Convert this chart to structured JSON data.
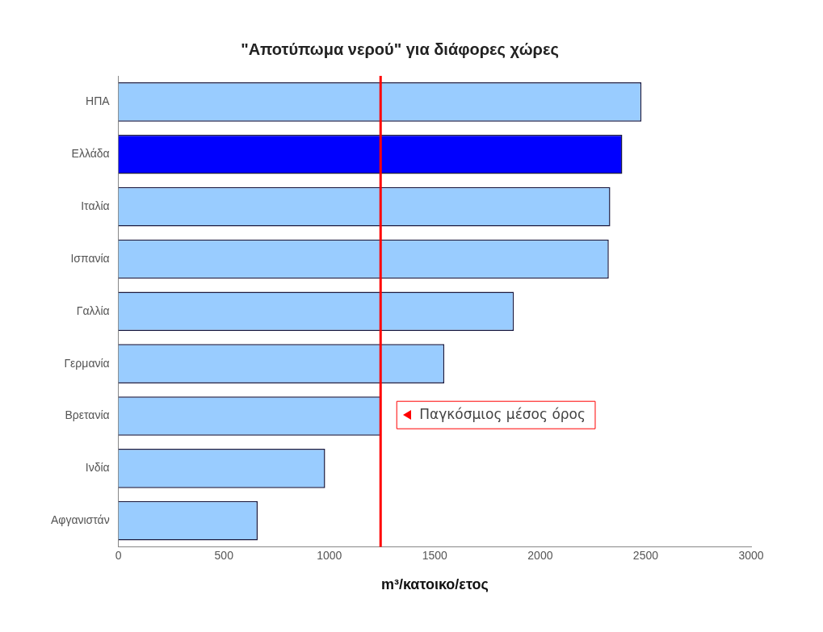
{
  "chart_data": {
    "type": "bar",
    "orientation": "horizontal",
    "title": "\"Αποτύπωμα νερού\" για διάφορες χώρες",
    "xlabel": "m³/κατοικο/ετος",
    "categories": [
      "ΗΠΑ",
      "Ελλάδα",
      "Ιταλία",
      "Ισπανία",
      "Γαλλία",
      "Γερμανία",
      "Βρετανία",
      "Ινδία",
      "Αφγανιστάν"
    ],
    "values": [
      2480,
      2389,
      2332,
      2325,
      1875,
      1545,
      1245,
      980,
      660
    ],
    "colors": [
      "#99ccff",
      "#0000ff",
      "#99ccff",
      "#99ccff",
      "#99ccff",
      "#99ccff",
      "#99ccff",
      "#99ccff",
      "#99ccff"
    ],
    "xlim": [
      0,
      3000
    ],
    "xticks": [
      0,
      500,
      1000,
      1500,
      2000,
      2500,
      3000
    ],
    "grid": false,
    "legend": false,
    "ref_lines": [
      {
        "axis": "x",
        "value": 1243,
        "label": "Παγκόσμιος μέσος όρος",
        "color": "#ff0000"
      }
    ]
  }
}
